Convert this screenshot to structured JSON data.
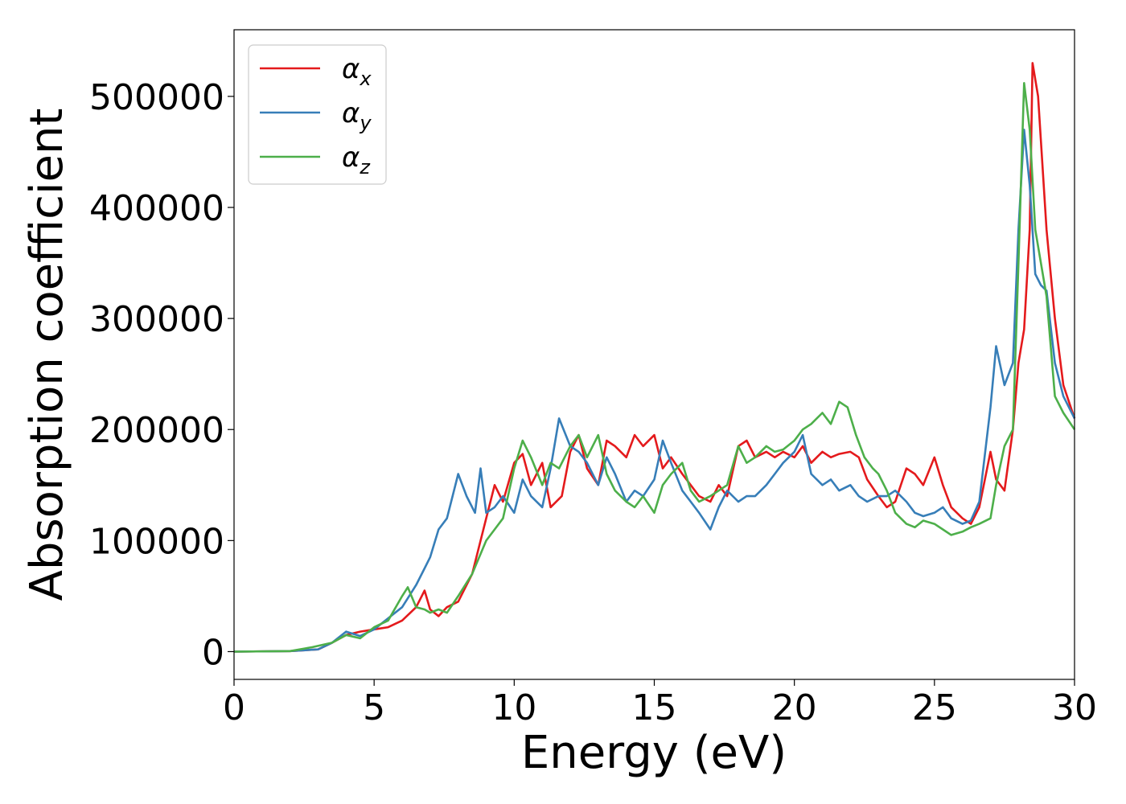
{
  "chart_data": {
    "type": "line",
    "title": "",
    "xlabel": "Energy (eV)",
    "ylabel": "Absorption coefficient",
    "xlim": [
      0,
      30
    ],
    "ylim": [
      -25000,
      560000
    ],
    "xticks": [
      0,
      5,
      10,
      15,
      20,
      25,
      30
    ],
    "yticks": [
      0,
      100000,
      200000,
      300000,
      400000,
      500000
    ],
    "xtick_labels": [
      "0",
      "5",
      "10",
      "15",
      "20",
      "25",
      "30"
    ],
    "ytick_labels": [
      "0",
      "100000",
      "200000",
      "300000",
      "400000",
      "500000"
    ],
    "legend_position": "top-left",
    "grid": false,
    "series": [
      {
        "name": "α_x",
        "label_main": "α",
        "label_sub": "x",
        "color": "#e41a1c",
        "x": [
          0,
          2,
          3,
          3.5,
          4,
          4.5,
          5,
          5.5,
          6,
          6.5,
          6.8,
          7,
          7.3,
          7.6,
          8,
          8.5,
          9,
          9.3,
          9.6,
          10,
          10.3,
          10.6,
          11,
          11.3,
          11.7,
          12,
          12.3,
          12.6,
          13,
          13.3,
          13.6,
          14,
          14.3,
          14.6,
          15,
          15.3,
          15.6,
          16,
          16.3,
          16.6,
          17,
          17.3,
          17.6,
          18,
          18.3,
          18.6,
          19,
          19.3,
          19.6,
          20,
          20.3,
          20.6,
          21,
          21.3,
          21.6,
          22,
          22.3,
          22.6,
          23,
          23.3,
          23.6,
          24,
          24.3,
          24.6,
          25,
          25.3,
          25.6,
          26,
          26.3,
          26.6,
          27,
          27.2,
          27.5,
          27.8,
          28,
          28.2,
          28.4,
          28.5,
          28.7,
          29,
          29.3,
          29.6,
          30
        ],
        "y": [
          0,
          500,
          2000,
          8000,
          15000,
          18000,
          20000,
          22000,
          28000,
          40000,
          55000,
          38000,
          32000,
          40000,
          45000,
          70000,
          120000,
          150000,
          135000,
          170000,
          178000,
          150000,
          170000,
          130000,
          140000,
          180000,
          195000,
          165000,
          150000,
          190000,
          185000,
          175000,
          195000,
          185000,
          195000,
          165000,
          175000,
          160000,
          150000,
          140000,
          135000,
          150000,
          140000,
          185000,
          190000,
          175000,
          180000,
          175000,
          180000,
          175000,
          185000,
          170000,
          180000,
          175000,
          178000,
          180000,
          175000,
          155000,
          140000,
          130000,
          135000,
          165000,
          160000,
          150000,
          175000,
          150000,
          130000,
          120000,
          115000,
          130000,
          180000,
          155000,
          145000,
          200000,
          260000,
          290000,
          380000,
          530000,
          500000,
          380000,
          300000,
          240000,
          210000
        ]
      },
      {
        "name": "α_y",
        "label_main": "α",
        "label_sub": "y",
        "color": "#377eb8",
        "x": [
          0,
          2,
          3,
          3.5,
          4,
          4.5,
          5,
          5.5,
          6,
          6.5,
          6.8,
          7,
          7.3,
          7.6,
          8,
          8.3,
          8.6,
          8.8,
          9,
          9.3,
          9.6,
          10,
          10.3,
          10.6,
          11,
          11.3,
          11.6,
          12,
          12.3,
          12.6,
          13,
          13.3,
          13.6,
          14,
          14.3,
          14.6,
          15,
          15.3,
          15.6,
          16,
          16.3,
          16.6,
          17,
          17.3,
          17.6,
          18,
          18.3,
          18.6,
          19,
          19.3,
          19.6,
          20,
          20.3,
          20.6,
          21,
          21.3,
          21.6,
          22,
          22.3,
          22.6,
          23,
          23.3,
          23.6,
          24,
          24.3,
          24.6,
          25,
          25.3,
          25.6,
          26,
          26.3,
          26.6,
          27,
          27.2,
          27.5,
          27.8,
          28,
          28.2,
          28.4,
          28.6,
          28.8,
          29,
          29.3,
          29.6,
          30
        ],
        "y": [
          0,
          500,
          2000,
          8000,
          18000,
          14000,
          20000,
          30000,
          40000,
          60000,
          75000,
          85000,
          110000,
          120000,
          160000,
          140000,
          125000,
          165000,
          125000,
          130000,
          140000,
          125000,
          155000,
          140000,
          130000,
          165000,
          210000,
          185000,
          180000,
          170000,
          150000,
          175000,
          160000,
          135000,
          145000,
          140000,
          155000,
          190000,
          170000,
          145000,
          135000,
          125000,
          110000,
          130000,
          145000,
          135000,
          140000,
          140000,
          150000,
          160000,
          170000,
          180000,
          195000,
          160000,
          150000,
          155000,
          145000,
          150000,
          140000,
          135000,
          140000,
          140000,
          145000,
          135000,
          125000,
          122000,
          125000,
          130000,
          120000,
          115000,
          118000,
          135000,
          220000,
          275000,
          240000,
          260000,
          380000,
          470000,
          420000,
          340000,
          330000,
          325000,
          260000,
          230000,
          210000
        ]
      },
      {
        "name": "α_z",
        "label_main": "α",
        "label_sub": "z",
        "color": "#4daf4a",
        "x": [
          0,
          2,
          2.8,
          3.5,
          4,
          4.5,
          5,
          5.5,
          6,
          6.2,
          6.5,
          6.8,
          7,
          7.3,
          7.6,
          8,
          8.5,
          9,
          9.3,
          9.6,
          10,
          10.3,
          10.6,
          11,
          11.3,
          11.6,
          12,
          12.3,
          12.6,
          13,
          13.3,
          13.6,
          14,
          14.3,
          14.6,
          15,
          15.3,
          15.6,
          16,
          16.3,
          16.6,
          17,
          17.3,
          17.6,
          18,
          18.3,
          18.6,
          19,
          19.3,
          19.6,
          20,
          20.3,
          20.6,
          21,
          21.3,
          21.6,
          21.9,
          22.2,
          22.5,
          22.8,
          23,
          23.3,
          23.6,
          24,
          24.3,
          24.6,
          25,
          25.3,
          25.6,
          26,
          26.3,
          26.6,
          27,
          27.2,
          27.5,
          27.8,
          28,
          28.2,
          28.4,
          28.6,
          28.8,
          29,
          29.3,
          29.6,
          30
        ],
        "y": [
          0,
          500,
          4000,
          8000,
          15000,
          12000,
          22000,
          28000,
          50000,
          58000,
          40000,
          38000,
          35000,
          38000,
          35000,
          50000,
          70000,
          100000,
          110000,
          120000,
          165000,
          190000,
          175000,
          150000,
          170000,
          165000,
          185000,
          195000,
          175000,
          195000,
          160000,
          145000,
          135000,
          130000,
          140000,
          125000,
          150000,
          160000,
          170000,
          145000,
          135000,
          140000,
          145000,
          150000,
          185000,
          170000,
          175000,
          185000,
          180000,
          182000,
          190000,
          200000,
          205000,
          215000,
          205000,
          225000,
          220000,
          195000,
          175000,
          165000,
          160000,
          145000,
          125000,
          115000,
          112000,
          118000,
          115000,
          110000,
          105000,
          108000,
          112000,
          115000,
          120000,
          150000,
          185000,
          200000,
          350000,
          512000,
          470000,
          380000,
          350000,
          320000,
          230000,
          215000,
          200000
        ]
      }
    ]
  }
}
